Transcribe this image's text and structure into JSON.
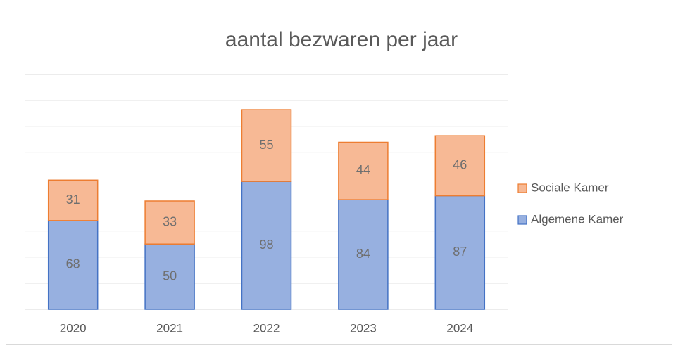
{
  "chart_data": {
    "type": "stacked_bar",
    "title": "aantal bezwaren per jaar",
    "categories": [
      "2020",
      "2021",
      "2022",
      "2023",
      "2024"
    ],
    "series": [
      {
        "name": "Algemene Kamer",
        "color": "#97b0e0",
        "edgecolor": "#4472c4",
        "values": [
          68,
          50,
          98,
          84,
          87
        ]
      },
      {
        "name": "Sociale Kamer",
        "color": "#f7b995",
        "edgecolor": "#ed7d31",
        "values": [
          31,
          33,
          55,
          44,
          46
        ]
      }
    ],
    "ylim": [
      0,
      180
    ],
    "yticks": [
      0,
      20,
      40,
      60,
      80,
      100,
      120,
      140,
      160,
      180
    ],
    "grid": true,
    "legend": "right"
  }
}
